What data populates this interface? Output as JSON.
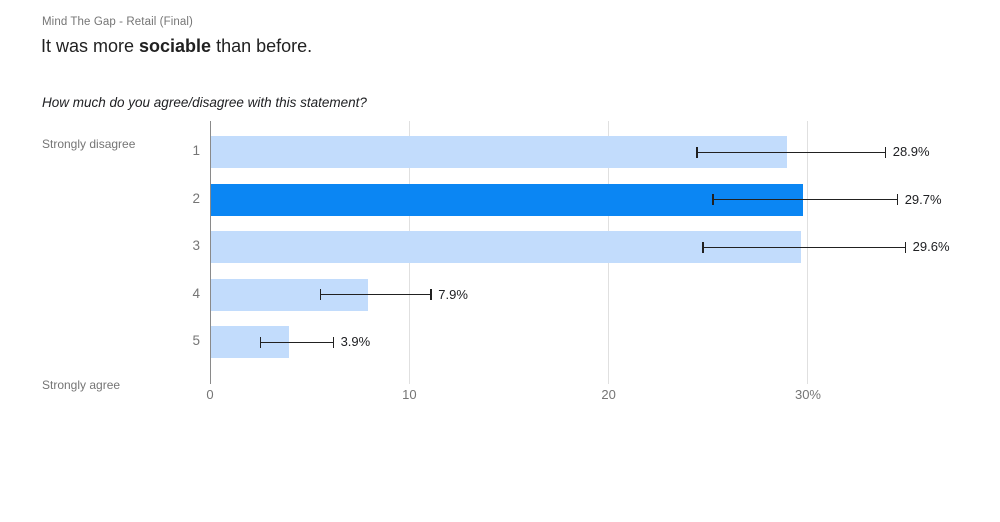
{
  "header": {
    "form_title": "Mind The Gap - Retail (Final)",
    "title_prefix": "It was more ",
    "title_bold": "sociable",
    "title_suffix": " than before.",
    "prompt": "How much do you agree/disagree with this statement?"
  },
  "chart_data": {
    "type": "bar",
    "orientation": "horizontal",
    "title": "How much do you agree/disagree with this statement?",
    "categories": [
      "1",
      "2",
      "3",
      "4",
      "5"
    ],
    "values": [
      28.9,
      29.7,
      29.6,
      7.9,
      3.9
    ],
    "value_labels": [
      "28.9%",
      "29.7%",
      "29.6%",
      "7.9%",
      "3.9%"
    ],
    "error_low": [
      24.4,
      25.2,
      24.7,
      5.5,
      2.5
    ],
    "error_high": [
      33.9,
      34.5,
      34.9,
      11.1,
      6.2
    ],
    "highlighted_index": 1,
    "x_ticks": [
      "0",
      "10",
      "20",
      "30%"
    ],
    "x_tick_values": [
      0,
      10,
      20,
      30
    ],
    "xlim": [
      0,
      35
    ],
    "grid": true,
    "top_axis_label": "Strongly disagree",
    "bottom_axis_label": "Strongly agree",
    "colors": {
      "bar": "#c2dcfc",
      "bar_highlight": "#0b86f3",
      "axis_line": "#8a8a8a",
      "gridline": "#e0e0e0",
      "error_bar": "#212121",
      "muted_text": "#757575",
      "value_text": "#202124",
      "title_text": "#212121"
    }
  }
}
